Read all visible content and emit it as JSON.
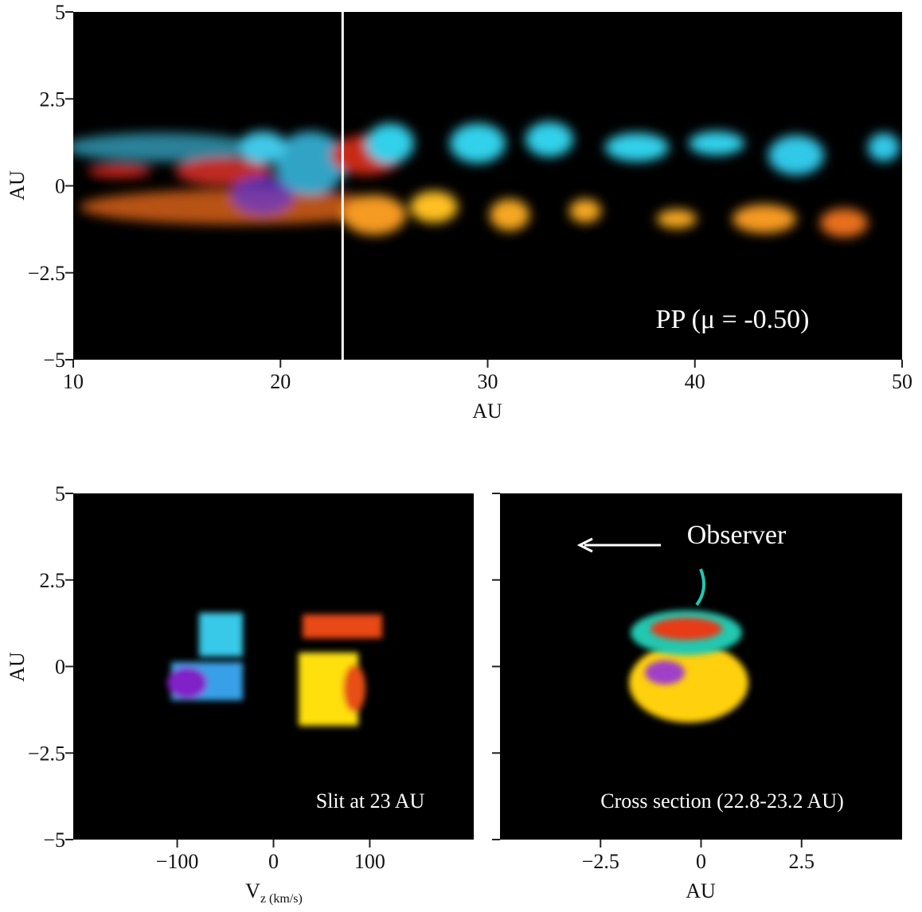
{
  "chart_data": [
    {
      "type": "image",
      "xlim": [
        10,
        50
      ],
      "ylim": [
        -5,
        5
      ],
      "xticks": [
        10,
        20,
        30,
        40,
        50
      ],
      "yticks": [
        {
          "value": -5,
          "label": "−5"
        },
        {
          "value": -2.5,
          "label": "−2.5"
        },
        0,
        2.5,
        5
      ],
      "x_label": "AU",
      "y_label": "AU",
      "slit_x": 23,
      "annotations": [
        "PP (μ = -0.50)"
      ]
    },
    {
      "type": "image",
      "xlim": [
        -208,
        208
      ],
      "ylim": [
        -5,
        5
      ],
      "xticks": [
        {
          "value": -100,
          "label": "−100"
        },
        0,
        100
      ],
      "yticks": [
        {
          "value": -5,
          "label": "−5"
        },
        {
          "value": -2.5,
          "label": "−2.5"
        },
        0,
        2.5,
        5
      ],
      "x_label": "V",
      "x_label_sub": "z (km/s)",
      "y_label": "AU",
      "annotations": [
        "Slit at 23 AU"
      ]
    },
    {
      "type": "image",
      "xlim": [
        -5,
        5
      ],
      "ylim": [
        -5,
        5
      ],
      "xticks": [
        {
          "value": -2.5,
          "label": "−2.5"
        },
        0,
        2.5
      ],
      "yticks": [
        -5,
        -2.5,
        0,
        2.5,
        5
      ],
      "ytick_labels": false,
      "x_label": "AU",
      "annotations": [
        "Cross section (22.8-23.2 AU)",
        "Observer"
      ]
    }
  ]
}
